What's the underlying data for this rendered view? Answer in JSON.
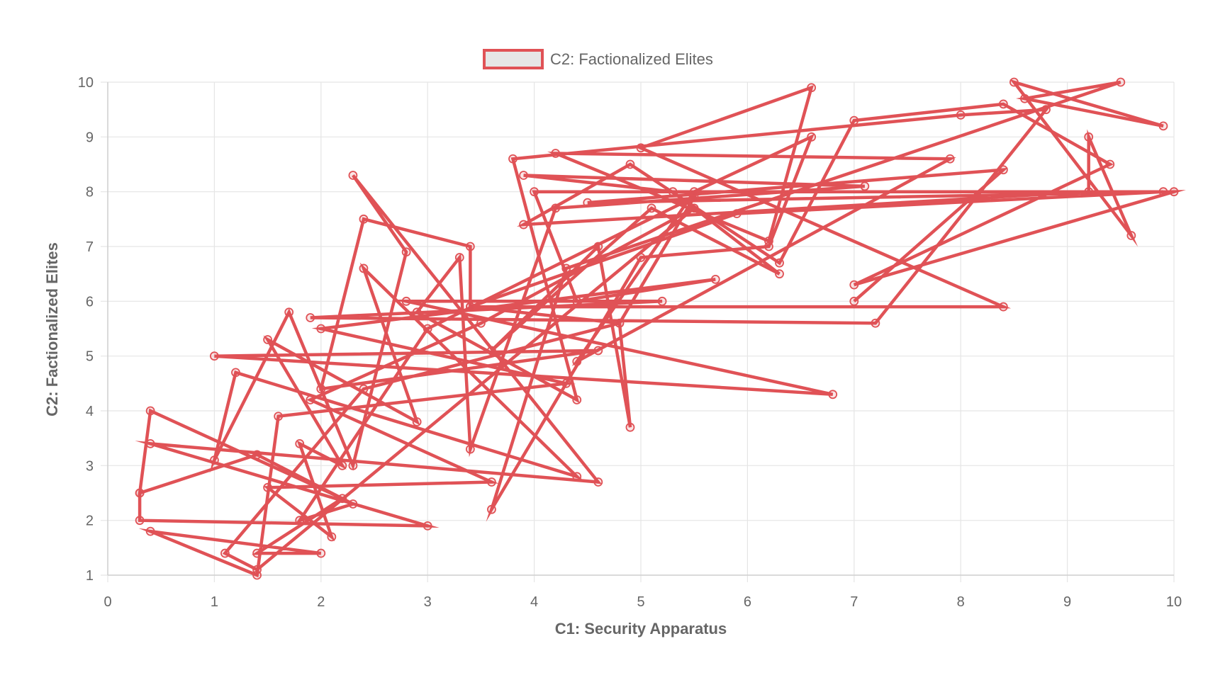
{
  "chart_data": {
    "type": "line",
    "xlabel": "C1: Security Apparatus",
    "ylabel": "C2: Factionalized Elites",
    "xlim": [
      0,
      10
    ],
    "ylim": [
      1,
      10
    ],
    "x_ticks": [
      "0",
      "1",
      "2",
      "3",
      "4",
      "5",
      "6",
      "7",
      "8",
      "9",
      "10"
    ],
    "y_ticks": [
      "1",
      "2",
      "3",
      "4",
      "5",
      "6",
      "7",
      "8",
      "9",
      "10"
    ],
    "grid": true,
    "legend_position": "top-center",
    "series": [
      {
        "name": "C2: Factionalized Elites",
        "color": "#e05256",
        "fill": "#e6e6e6",
        "points": [
          [
            0.3,
            2.5
          ],
          [
            0.3,
            2.0
          ],
          [
            3.0,
            1.9
          ],
          [
            0.4,
            3.4
          ],
          [
            4.6,
            2.7
          ],
          [
            2.3,
            8.3
          ],
          [
            2.8,
            6.9
          ],
          [
            2.3,
            3.0
          ],
          [
            1.7,
            5.8
          ],
          [
            1.0,
            3.1
          ],
          [
            1.2,
            4.7
          ],
          [
            4.4,
            2.8
          ],
          [
            2.4,
            6.6
          ],
          [
            2.9,
            3.8
          ],
          [
            1.5,
            5.3
          ],
          [
            2.2,
            3.0
          ],
          [
            1.8,
            3.4
          ],
          [
            2.1,
            1.7
          ],
          [
            1.5,
            2.6
          ],
          [
            3.6,
            2.7
          ],
          [
            1.9,
            4.2
          ],
          [
            3.5,
            5.6
          ],
          [
            5.5,
            7.7
          ],
          [
            1.4,
            1.1
          ],
          [
            1.1,
            1.4
          ],
          [
            2.4,
            4.4
          ],
          [
            4.8,
            5.6
          ],
          [
            4.9,
            3.7
          ],
          [
            4.6,
            7.0
          ],
          [
            3.6,
            5.1
          ],
          [
            5.1,
            7.7
          ],
          [
            6.3,
            6.5
          ],
          [
            5.3,
            8.0
          ],
          [
            3.9,
            8.3
          ],
          [
            7.1,
            8.1
          ],
          [
            4.2,
            7.7
          ],
          [
            3.4,
            3.3
          ],
          [
            3.3,
            6.8
          ],
          [
            2.9,
            5.8
          ],
          [
            4.4,
            4.2
          ],
          [
            3.8,
            8.6
          ],
          [
            8.0,
            9.4
          ],
          [
            8.8,
            9.5
          ],
          [
            7.2,
            5.6
          ],
          [
            1.9,
            5.7
          ],
          [
            5.2,
            6.0
          ],
          [
            2.8,
            6.0
          ],
          [
            6.8,
            4.3
          ],
          [
            1.0,
            5.0
          ],
          [
            4.6,
            5.1
          ],
          [
            2.0,
            4.4
          ],
          [
            2.4,
            7.5
          ],
          [
            3.4,
            7.0
          ],
          [
            3.4,
            5.9
          ],
          [
            5.9,
            7.6
          ],
          [
            9.9,
            8.0
          ],
          [
            4.0,
            8.0
          ],
          [
            4.4,
            6.0
          ],
          [
            5.7,
            6.4
          ],
          [
            2.0,
            5.5
          ],
          [
            4.3,
            4.5
          ],
          [
            1.6,
            3.9
          ],
          [
            1.4,
            1.0
          ],
          [
            0.4,
            1.8
          ],
          [
            2.0,
            1.4
          ],
          [
            1.4,
            1.4
          ],
          [
            2.2,
            2.4
          ],
          [
            0.4,
            4.0
          ],
          [
            0.3,
            2.5
          ],
          [
            1.4,
            3.2
          ],
          [
            2.3,
            2.3
          ],
          [
            1.8,
            2.0
          ],
          [
            3.0,
            5.5
          ],
          [
            5.5,
            7.9
          ],
          [
            4.8,
            5.6
          ],
          [
            3.4,
            5.9
          ],
          [
            8.4,
            5.9
          ],
          [
            5.0,
            8.8
          ],
          [
            6.6,
            9.9
          ],
          [
            6.2,
            7.1
          ],
          [
            4.2,
            8.7
          ],
          [
            7.9,
            8.6
          ],
          [
            4.4,
            4.9
          ],
          [
            5.5,
            8.0
          ],
          [
            6.6,
            9.0
          ],
          [
            6.2,
            7.0
          ],
          [
            5.0,
            6.8
          ],
          [
            3.6,
            2.2
          ],
          [
            4.3,
            6.6
          ],
          [
            9.5,
            10.0
          ],
          [
            8.6,
            9.7
          ],
          [
            9.9,
            9.2
          ],
          [
            8.5,
            10.0
          ],
          [
            9.6,
            7.2
          ],
          [
            9.2,
            9.0
          ],
          [
            9.2,
            8.0
          ],
          [
            3.9,
            7.4
          ],
          [
            4.9,
            8.5
          ],
          [
            6.3,
            6.7
          ],
          [
            7.0,
            9.3
          ],
          [
            8.4,
            9.6
          ],
          [
            9.4,
            8.5
          ],
          [
            7.0,
            6.3
          ],
          [
            10.0,
            8.0
          ],
          [
            4.5,
            7.8
          ],
          [
            8.4,
            8.4
          ],
          [
            7.0,
            6.0
          ]
        ]
      }
    ]
  }
}
